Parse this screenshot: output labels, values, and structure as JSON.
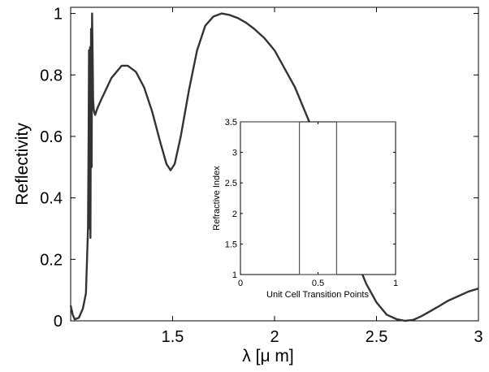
{
  "chart_data": [
    {
      "type": "line",
      "title": "",
      "xlabel": "λ [μ m]",
      "ylabel": "Reflectivity",
      "xlim": [
        1.0,
        3.0
      ],
      "ylim": [
        0,
        1.02
      ],
      "x_ticks": [
        1.5,
        2,
        2.5,
        3
      ],
      "x_tick_labels": [
        "1.5",
        "2",
        "2.5",
        "3"
      ],
      "y_ticks": [
        0,
        0.2,
        0.4,
        0.6,
        0.8,
        1
      ],
      "y_tick_labels": [
        "0",
        "0.2",
        "0.4",
        "0.6",
        "0.8",
        "1"
      ],
      "grid": false,
      "legend": "none",
      "color": "#333333",
      "series": [
        {
          "x": [
            1.0,
            1.01,
            1.02,
            1.04,
            1.06,
            1.075,
            1.085,
            1.088,
            1.09,
            1.092,
            1.095,
            1.097,
            1.1,
            1.103,
            1.105,
            1.108,
            1.11,
            1.113,
            1.115,
            1.12,
            1.13,
            1.15,
            1.2,
            1.25,
            1.28,
            1.32,
            1.36,
            1.4,
            1.44,
            1.47,
            1.49,
            1.51,
            1.54,
            1.58,
            1.62,
            1.66,
            1.7,
            1.74,
            1.78,
            1.82,
            1.86,
            1.9,
            1.95,
            2.0,
            2.05,
            2.1,
            2.15,
            2.2,
            2.25,
            2.3,
            2.35,
            2.4,
            2.45,
            2.5,
            2.55,
            2.6,
            2.64,
            2.68,
            2.72,
            2.76,
            2.8,
            2.85,
            2.9,
            2.95,
            3.0
          ],
          "y": [
            0.05,
            0.02,
            0.005,
            0.01,
            0.04,
            0.09,
            0.3,
            0.6,
            0.88,
            0.3,
            0.89,
            0.27,
            0.95,
            0.5,
            1.0,
            0.85,
            0.72,
            0.69,
            0.68,
            0.67,
            0.69,
            0.72,
            0.79,
            0.83,
            0.83,
            0.81,
            0.76,
            0.68,
            0.58,
            0.51,
            0.49,
            0.51,
            0.6,
            0.75,
            0.88,
            0.96,
            0.99,
            1.0,
            0.995,
            0.985,
            0.97,
            0.95,
            0.92,
            0.88,
            0.82,
            0.76,
            0.68,
            0.6,
            0.5,
            0.4,
            0.3,
            0.2,
            0.12,
            0.06,
            0.02,
            0.005,
            0.0,
            0.003,
            0.015,
            0.03,
            0.045,
            0.065,
            0.08,
            0.095,
            0.105
          ]
        }
      ]
    },
    {
      "type": "line",
      "title": "",
      "xlabel": "Unit Cell Transition Points",
      "ylabel": "Refractive Index",
      "xlim": [
        0,
        1
      ],
      "ylim": [
        1,
        3.5
      ],
      "x_ticks": [
        0,
        0.5,
        1
      ],
      "x_tick_labels": [
        "0",
        "0.5",
        "1"
      ],
      "y_ticks": [
        1,
        1.5,
        2,
        2.5,
        3,
        3.5
      ],
      "y_tick_labels": [
        "1",
        "1.5",
        "2",
        "2.5",
        "3",
        "3.5"
      ],
      "grid": false,
      "legend": "none",
      "color": "#555555",
      "series": [
        {
          "x": [
            0,
            0.38,
            0.38,
            0.62,
            0.62,
            1.0
          ],
          "y": [
            3.5,
            3.5,
            1.0,
            1.0,
            3.5,
            3.5
          ]
        }
      ]
    }
  ]
}
